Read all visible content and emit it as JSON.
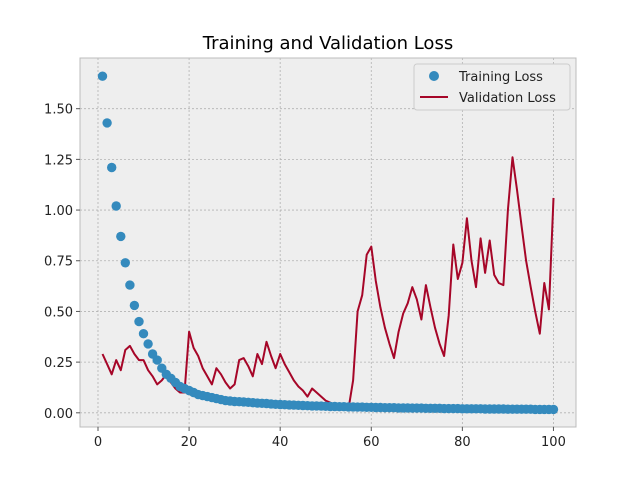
{
  "chart_data": {
    "type": "line",
    "title": "Training and Validation Loss",
    "xlabel": "",
    "ylabel": "",
    "xlim": [
      -3.95,
      104.95
    ],
    "ylim": [
      -0.07,
      1.75
    ],
    "xticks": [
      0,
      20,
      40,
      60,
      80,
      100
    ],
    "yticks": [
      0.0,
      0.25,
      0.5,
      0.75,
      1.0,
      1.25,
      1.5
    ],
    "ytick_labels": [
      "0.00",
      "0.25",
      "0.50",
      "0.75",
      "1.00",
      "1.25",
      "1.50"
    ],
    "xtick_labels": [
      "0",
      "20",
      "40",
      "60",
      "80",
      "100"
    ],
    "grid": true,
    "legend_position": "top-right",
    "colors": {
      "training": "#348ABD",
      "validation": "#A60628",
      "background": "#EEEEEE",
      "grid": "#B2B2B2"
    },
    "series": [
      {
        "name": "Training Loss",
        "style": "scatter",
        "x": [
          1,
          2,
          3,
          4,
          5,
          6,
          7,
          8,
          9,
          10,
          11,
          12,
          13,
          14,
          15,
          16,
          17,
          18,
          19,
          20,
          21,
          22,
          23,
          24,
          25,
          26,
          27,
          28,
          29,
          30,
          31,
          32,
          33,
          34,
          35,
          36,
          37,
          38,
          39,
          40,
          41,
          42,
          43,
          44,
          45,
          46,
          47,
          48,
          49,
          50,
          51,
          52,
          53,
          54,
          55,
          56,
          57,
          58,
          59,
          60,
          61,
          62,
          63,
          64,
          65,
          66,
          67,
          68,
          69,
          70,
          71,
          72,
          73,
          74,
          75,
          76,
          77,
          78,
          79,
          80,
          81,
          82,
          83,
          84,
          85,
          86,
          87,
          88,
          89,
          90,
          91,
          92,
          93,
          94,
          95,
          96,
          97,
          98,
          99,
          100
        ],
        "values": [
          1.66,
          1.43,
          1.21,
          1.02,
          0.87,
          0.74,
          0.63,
          0.53,
          0.45,
          0.39,
          0.34,
          0.29,
          0.26,
          0.22,
          0.19,
          0.17,
          0.15,
          0.13,
          0.12,
          0.11,
          0.1,
          0.09,
          0.085,
          0.08,
          0.075,
          0.07,
          0.065,
          0.06,
          0.058,
          0.056,
          0.055,
          0.054,
          0.052,
          0.05,
          0.048,
          0.047,
          0.046,
          0.044,
          0.042,
          0.041,
          0.04,
          0.039,
          0.038,
          0.037,
          0.036,
          0.035,
          0.034,
          0.034,
          0.033,
          0.032,
          0.031,
          0.031,
          0.03,
          0.03,
          0.029,
          0.029,
          0.028,
          0.028,
          0.027,
          0.027,
          0.026,
          0.026,
          0.025,
          0.025,
          0.025,
          0.024,
          0.024,
          0.024,
          0.023,
          0.023,
          0.023,
          0.022,
          0.022,
          0.022,
          0.022,
          0.021,
          0.021,
          0.021,
          0.021,
          0.02,
          0.02,
          0.02,
          0.02,
          0.02,
          0.019,
          0.019,
          0.019,
          0.019,
          0.019,
          0.018,
          0.018,
          0.018,
          0.018,
          0.018,
          0.018,
          0.017,
          0.017,
          0.017,
          0.017,
          0.017
        ]
      },
      {
        "name": "Validation Loss",
        "style": "line",
        "x": [
          1,
          2,
          3,
          4,
          5,
          6,
          7,
          8,
          9,
          10,
          11,
          12,
          13,
          14,
          15,
          16,
          17,
          18,
          19,
          20,
          21,
          22,
          23,
          24,
          25,
          26,
          27,
          28,
          29,
          30,
          31,
          32,
          33,
          34,
          35,
          36,
          37,
          38,
          39,
          40,
          41,
          42,
          43,
          44,
          45,
          46,
          47,
          48,
          49,
          50,
          51,
          52,
          53,
          54,
          55,
          56,
          57,
          58,
          59,
          60,
          61,
          62,
          63,
          64,
          65,
          66,
          67,
          68,
          69,
          70,
          71,
          72,
          73,
          74,
          75,
          76,
          77,
          78,
          79,
          80,
          81,
          82,
          83,
          84,
          85,
          86,
          87,
          88,
          89,
          90,
          91,
          92,
          93,
          94,
          95,
          96,
          97,
          98,
          99,
          100
        ],
        "values": [
          0.29,
          0.24,
          0.19,
          0.26,
          0.21,
          0.31,
          0.33,
          0.29,
          0.26,
          0.26,
          0.21,
          0.18,
          0.14,
          0.16,
          0.19,
          0.15,
          0.12,
          0.1,
          0.1,
          0.4,
          0.32,
          0.28,
          0.22,
          0.18,
          0.14,
          0.22,
          0.19,
          0.15,
          0.12,
          0.14,
          0.26,
          0.27,
          0.23,
          0.18,
          0.29,
          0.24,
          0.35,
          0.28,
          0.22,
          0.29,
          0.24,
          0.2,
          0.16,
          0.13,
          0.11,
          0.08,
          0.12,
          0.1,
          0.08,
          0.06,
          0.05,
          0.04,
          0.03,
          0.025,
          0.02,
          0.16,
          0.5,
          0.58,
          0.78,
          0.82,
          0.65,
          0.52,
          0.42,
          0.34,
          0.27,
          0.4,
          0.49,
          0.54,
          0.62,
          0.56,
          0.46,
          0.63,
          0.52,
          0.42,
          0.34,
          0.28,
          0.48,
          0.83,
          0.66,
          0.74,
          0.96,
          0.75,
          0.62,
          0.86,
          0.69,
          0.85,
          0.68,
          0.64,
          0.63,
          1.0,
          1.26,
          1.1,
          0.92,
          0.75,
          0.62,
          0.5,
          0.39,
          0.64,
          0.51,
          1.06
        ]
      }
    ]
  }
}
